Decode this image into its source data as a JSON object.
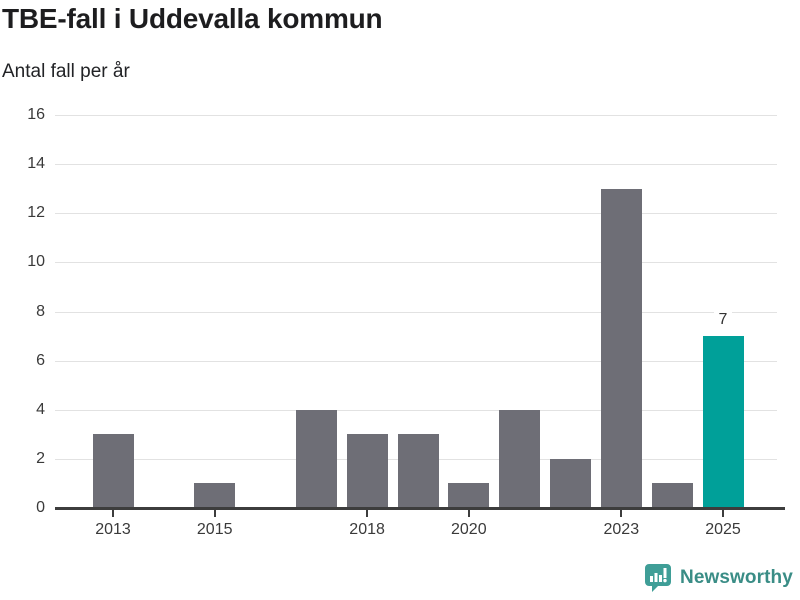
{
  "header": {
    "title": "TBE-fall i Uddevalla kommun",
    "subtitle": "Antal fall per år"
  },
  "chart_data": {
    "type": "bar",
    "title": "TBE-fall i Uddevalla kommun",
    "subtitle": "Antal fall per år",
    "xlabel": "",
    "ylabel": "Antal fall per år",
    "categories": [
      2013,
      2014,
      2015,
      2016,
      2017,
      2018,
      2019,
      2020,
      2021,
      2022,
      2023,
      2024,
      2025
    ],
    "values": [
      3,
      0,
      1,
      0,
      4,
      3,
      3,
      1,
      4,
      2,
      13,
      1,
      7
    ],
    "highlight_category": 2025,
    "annotations": [
      {
        "category": 2025,
        "text": "7"
      }
    ],
    "x_tick_labels": [
      "2013",
      "2015",
      "2018",
      "2020",
      "2023",
      "2025"
    ],
    "ylim": [
      0,
      16
    ],
    "ytick_step": 2,
    "y_tick_labels": [
      "0",
      "2",
      "4",
      "6",
      "8",
      "10",
      "12",
      "14",
      "16"
    ],
    "grid": "horizontal",
    "legend": "none",
    "colors": {
      "bar": "#6e6e76",
      "highlight": "#00a099"
    }
  },
  "footer": {
    "brand": "Newsworthy",
    "logo_icon": "newsworthy-speech-bubble-chart-icon"
  },
  "colors": {
    "background": "#ffffff",
    "title_text": "#1d1d1f",
    "tick_text": "#3a3a3a",
    "gridline": "#e2e2e2",
    "axis": "#3d3d3d",
    "brand_icon": "#3f9e97",
    "brand_text": "#3a8d86"
  }
}
